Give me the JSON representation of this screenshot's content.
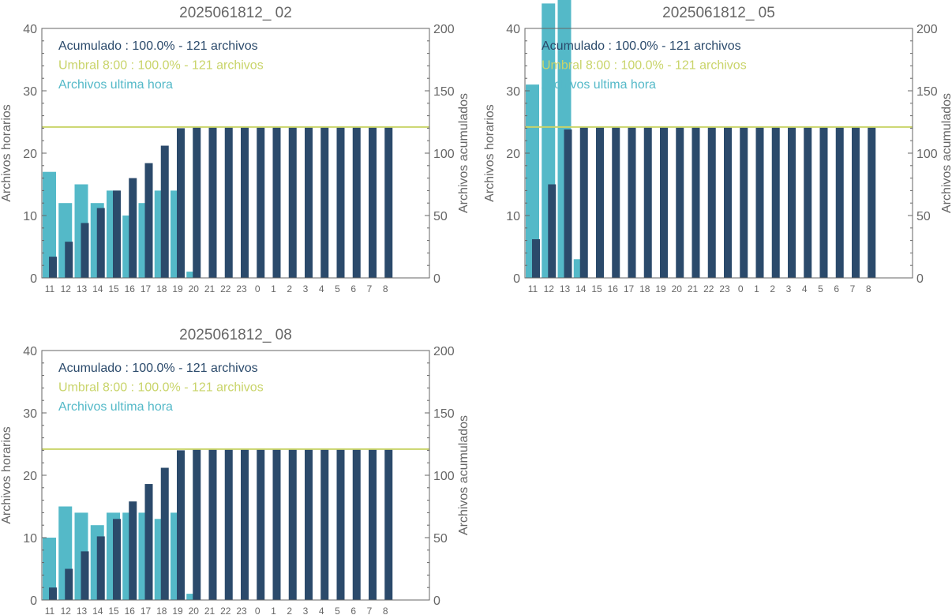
{
  "colors": {
    "hourly": "#54b9c8",
    "cumulative": "#2b4a6b",
    "threshold": "#c9d46a",
    "axis": "#666666",
    "title": "#666666"
  },
  "chart_data": [
    {
      "type": "bar",
      "title": "2025061812_ 02",
      "ylabel": "Archivos horarios",
      "ylabel_right": "Archivos acumulados",
      "ylim": [
        0,
        40
      ],
      "ylim_right": [
        0,
        200
      ],
      "yticks": [
        "0",
        "10",
        "20",
        "30",
        "40"
      ],
      "yticks_right": [
        "0",
        "50",
        "100",
        "150",
        "200"
      ],
      "categories": [
        "11",
        "12",
        "13",
        "14",
        "15",
        "16",
        "17",
        "18",
        "19",
        "20",
        "21",
        "22",
        "23",
        "0",
        "1",
        "2",
        "3",
        "4",
        "5",
        "6",
        "7",
        "8"
      ],
      "legend": [
        {
          "text": "Acumulado : 100.0% - 121 archivos",
          "color": "#2b4a6b"
        },
        {
          "text": "Umbral 8:00 : 100.0% - 121 archivos",
          "color": "#c9d46a"
        },
        {
          "text": "Archivos ultima hora",
          "color": "#54b9c8"
        }
      ],
      "threshold_right": 121,
      "series": [
        {
          "name": "Archivos ultima hora",
          "axis": "left",
          "values": [
            17,
            12,
            15,
            12,
            14,
            10,
            12,
            14,
            14,
            1,
            0,
            0,
            0,
            0,
            0,
            0,
            0,
            0,
            0,
            0,
            0,
            0
          ]
        },
        {
          "name": "Acumulado",
          "axis": "right",
          "values": [
            17,
            29,
            44,
            56,
            70,
            80,
            92,
            106,
            120,
            121,
            121,
            121,
            121,
            121,
            121,
            121,
            121,
            121,
            121,
            121,
            121,
            121
          ]
        }
      ]
    },
    {
      "type": "bar",
      "title": "2025061812_ 05",
      "ylabel": "Archivos horarios",
      "ylabel_right": "Archivos acumulados",
      "ylim": [
        0,
        40
      ],
      "ylim_right": [
        0,
        200
      ],
      "yticks": [
        "0",
        "10",
        "20",
        "30",
        "40"
      ],
      "yticks_right": [
        "0",
        "50",
        "100",
        "150",
        "200"
      ],
      "categories": [
        "11",
        "12",
        "13",
        "14",
        "15",
        "16",
        "17",
        "18",
        "19",
        "20",
        "21",
        "22",
        "23",
        "0",
        "1",
        "2",
        "3",
        "4",
        "5",
        "6",
        "7",
        "8"
      ],
      "legend": [
        {
          "text": "Acumulado : 100.0% - 121 archivos",
          "color": "#2b4a6b"
        },
        {
          "text": "Umbral 8:00 : 100.0% - 121 archivos",
          "color": "#c9d46a"
        },
        {
          "text": "Archivos ultima hora",
          "color": "#54b9c8"
        }
      ],
      "threshold_right": 121,
      "series": [
        {
          "name": "Archivos ultima hora",
          "axis": "left",
          "values": [
            31,
            44,
            45,
            3,
            0,
            0,
            0,
            0,
            0,
            0,
            0,
            0,
            0,
            0,
            0,
            0,
            0,
            0,
            0,
            0,
            0,
            0
          ]
        },
        {
          "name": "Acumulado",
          "axis": "right",
          "values": [
            31,
            75,
            119,
            121,
            121,
            121,
            121,
            121,
            121,
            121,
            121,
            121,
            121,
            121,
            121,
            121,
            121,
            121,
            121,
            121,
            121,
            121
          ]
        }
      ]
    },
    {
      "type": "bar",
      "title": "2025061812_ 08",
      "ylabel": "Archivos horarios",
      "ylabel_right": "Archivos acumulados",
      "ylim": [
        0,
        40
      ],
      "ylim_right": [
        0,
        200
      ],
      "yticks": [
        "0",
        "10",
        "20",
        "30",
        "40"
      ],
      "yticks_right": [
        "0",
        "50",
        "100",
        "150",
        "200"
      ],
      "categories": [
        "11",
        "12",
        "13",
        "14",
        "15",
        "16",
        "17",
        "18",
        "19",
        "20",
        "21",
        "22",
        "23",
        "0",
        "1",
        "2",
        "3",
        "4",
        "5",
        "6",
        "7",
        "8"
      ],
      "legend": [
        {
          "text": "Acumulado : 100.0% - 121 archivos",
          "color": "#2b4a6b"
        },
        {
          "text": "Umbral 8:00 : 100.0% - 121 archivos",
          "color": "#c9d46a"
        },
        {
          "text": "Archivos ultima hora",
          "color": "#54b9c8"
        }
      ],
      "threshold_right": 121,
      "series": [
        {
          "name": "Archivos ultima hora",
          "axis": "left",
          "values": [
            10,
            15,
            14,
            12,
            14,
            14,
            14,
            13,
            14,
            1,
            0,
            0,
            0,
            0,
            0,
            0,
            0,
            0,
            0,
            0,
            0,
            0
          ]
        },
        {
          "name": "Acumulado",
          "axis": "right",
          "values": [
            10,
            25,
            39,
            51,
            65,
            79,
            93,
            106,
            120,
            121,
            121,
            121,
            121,
            121,
            121,
            121,
            121,
            121,
            121,
            121,
            121,
            121
          ]
        }
      ]
    }
  ]
}
